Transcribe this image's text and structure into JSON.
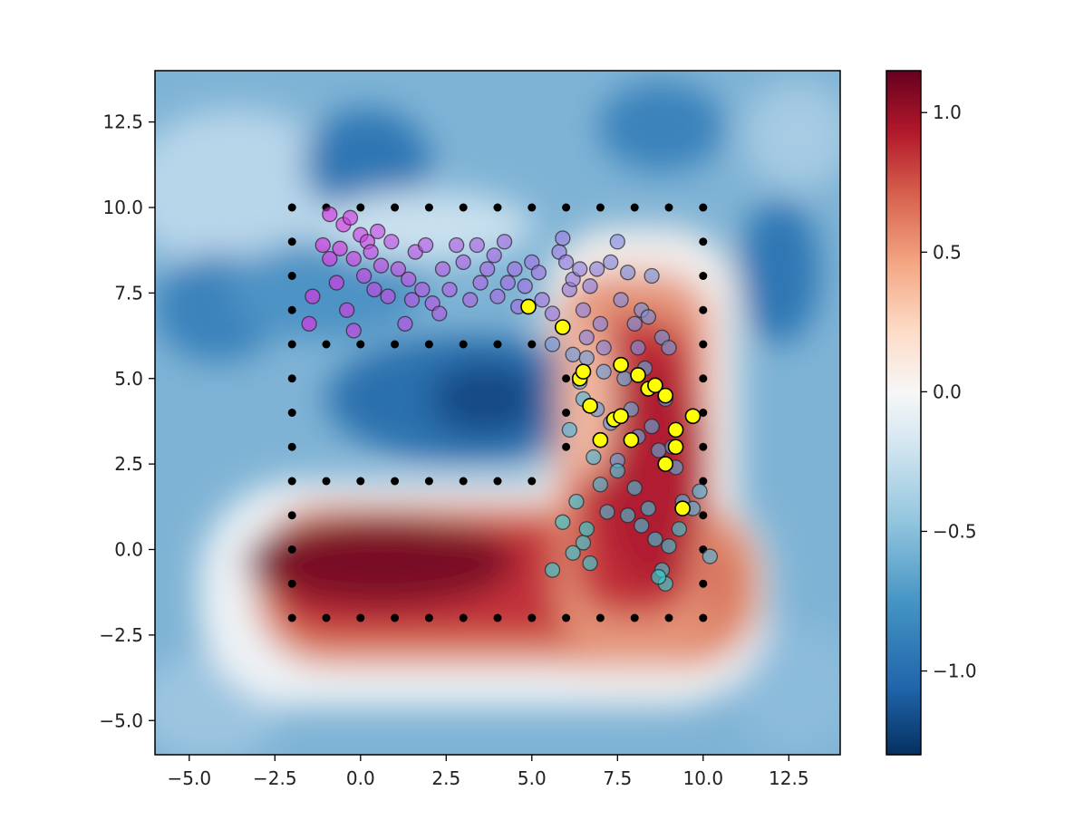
{
  "chart_data": {
    "type": "scatter",
    "title": "",
    "xlabel": "",
    "ylabel": "",
    "xlim": [
      -6,
      14
    ],
    "ylim": [
      -6,
      14
    ],
    "grid": false,
    "x_ticks": [
      -5.0,
      -2.5,
      0.0,
      2.5,
      5.0,
      7.5,
      10.0,
      12.5
    ],
    "x_tick_labels": [
      "−5.0",
      "−2.5",
      "0.0",
      "2.5",
      "5.0",
      "7.5",
      "10.0",
      "12.5"
    ],
    "y_ticks": [
      -5.0,
      -2.5,
      0.0,
      2.5,
      5.0,
      7.5,
      10.0,
      12.5
    ],
    "y_tick_labels": [
      "−5.0",
      "−2.5",
      "0.0",
      "2.5",
      "5.0",
      "7.5",
      "10.0",
      "12.5"
    ],
    "background_heatmap": {
      "colormap": "RdBu_r",
      "value_range": [
        -1.3,
        1.15
      ],
      "description": "smooth field: high (red) along bottom bar y≈-2..2 and right column x≈6..10, low (blue) inside upper loop and outside region"
    },
    "colorbar": {
      "ticks": [
        1.0,
        0.5,
        0.0,
        -0.5,
        -1.0
      ],
      "tick_labels": [
        "1.0",
        "0.5",
        "0.0",
        "−0.5",
        "−1.0"
      ],
      "range": [
        -1.3,
        1.15
      ]
    },
    "grid_points": {
      "color": "#000000",
      "description": "black dots tracing the boundary of a P-shaped region"
    },
    "series": [
      {
        "name": "trajectory_samples",
        "style": "gradient magenta→cyan",
        "points": [
          [
            -1.5,
            6.6
          ],
          [
            -1.4,
            7.4
          ],
          [
            -1.1,
            8.9
          ],
          [
            -0.9,
            8.5
          ],
          [
            -0.9,
            9.8
          ],
          [
            -0.7,
            7.8
          ],
          [
            -0.6,
            8.8
          ],
          [
            -0.5,
            9.5
          ],
          [
            -0.4,
            7.0
          ],
          [
            -0.3,
            9.7
          ],
          [
            -0.2,
            8.5
          ],
          [
            -0.2,
            6.4
          ],
          [
            0.0,
            9.2
          ],
          [
            0.1,
            8.0
          ],
          [
            0.2,
            9.0
          ],
          [
            0.3,
            8.7
          ],
          [
            0.4,
            7.6
          ],
          [
            0.5,
            9.3
          ],
          [
            0.6,
            8.3
          ],
          [
            0.8,
            7.4
          ],
          [
            0.9,
            9.0
          ],
          [
            1.1,
            8.2
          ],
          [
            1.3,
            6.6
          ],
          [
            1.4,
            7.9
          ],
          [
            1.5,
            7.3
          ],
          [
            1.6,
            8.7
          ],
          [
            1.8,
            7.6
          ],
          [
            1.9,
            8.9
          ],
          [
            2.1,
            7.2
          ],
          [
            2.3,
            6.9
          ],
          [
            2.4,
            8.2
          ],
          [
            2.6,
            7.6
          ],
          [
            2.8,
            8.9
          ],
          [
            3.0,
            8.4
          ],
          [
            3.2,
            7.3
          ],
          [
            3.4,
            8.9
          ],
          [
            3.5,
            7.8
          ],
          [
            3.7,
            8.2
          ],
          [
            3.9,
            8.6
          ],
          [
            4.0,
            7.4
          ],
          [
            4.2,
            9.0
          ],
          [
            4.3,
            7.8
          ],
          [
            4.5,
            8.2
          ],
          [
            4.6,
            7.1
          ],
          [
            4.8,
            7.7
          ],
          [
            5.0,
            8.4
          ],
          [
            5.2,
            8.1
          ],
          [
            5.3,
            7.3
          ],
          [
            5.6,
            6.9
          ],
          [
            5.8,
            8.7
          ],
          [
            5.9,
            9.1
          ],
          [
            6.0,
            8.4
          ],
          [
            6.1,
            7.6
          ],
          [
            6.2,
            7.9
          ],
          [
            6.4,
            8.2
          ],
          [
            6.5,
            7.0
          ],
          [
            6.6,
            6.2
          ],
          [
            6.7,
            7.7
          ],
          [
            6.9,
            8.2
          ],
          [
            7.0,
            6.6
          ],
          [
            7.1,
            5.9
          ],
          [
            7.3,
            8.4
          ],
          [
            7.5,
            9.0
          ],
          [
            7.6,
            7.3
          ],
          [
            7.8,
            8.1
          ],
          [
            8.0,
            6.6
          ],
          [
            8.1,
            5.9
          ],
          [
            8.2,
            7.0
          ],
          [
            8.4,
            6.8
          ],
          [
            8.5,
            8.0
          ],
          [
            8.8,
            6.2
          ],
          [
            9.0,
            5.9
          ],
          [
            5.6,
            6.0
          ],
          [
            6.2,
            5.7
          ],
          [
            6.4,
            4.9
          ],
          [
            6.6,
            5.6
          ],
          [
            6.9,
            4.1
          ],
          [
            7.1,
            5.2
          ],
          [
            7.3,
            3.7
          ],
          [
            7.5,
            2.6
          ],
          [
            7.7,
            5.0
          ],
          [
            7.9,
            4.1
          ],
          [
            8.1,
            3.3
          ],
          [
            8.3,
            5.3
          ],
          [
            8.5,
            3.6
          ],
          [
            8.7,
            2.9
          ],
          [
            8.9,
            4.4
          ],
          [
            9.1,
            3.0
          ],
          [
            9.2,
            2.4
          ],
          [
            9.4,
            1.4
          ],
          [
            9.7,
            1.2
          ],
          [
            9.9,
            1.7
          ],
          [
            10.2,
            -0.2
          ],
          [
            6.1,
            3.5
          ],
          [
            6.5,
            4.4
          ],
          [
            6.8,
            2.7
          ],
          [
            7.0,
            1.9
          ],
          [
            7.2,
            1.1
          ],
          [
            7.5,
            2.3
          ],
          [
            7.8,
            1.0
          ],
          [
            8.0,
            1.8
          ],
          [
            8.2,
            0.7
          ],
          [
            8.4,
            1.2
          ],
          [
            8.6,
            0.3
          ],
          [
            8.8,
            -0.6
          ],
          [
            9.0,
            0.1
          ],
          [
            9.3,
            0.6
          ],
          [
            6.3,
            1.4
          ],
          [
            6.5,
            0.2
          ],
          [
            6.7,
            -0.4
          ],
          [
            6.2,
            -0.1
          ],
          [
            5.9,
            0.8
          ],
          [
            5.6,
            -0.6
          ],
          [
            6.6,
            0.6
          ],
          [
            8.9,
            -1.0
          ],
          [
            8.7,
            -0.8
          ]
        ]
      },
      {
        "name": "highlighted_points",
        "color": "#ffff00",
        "points": [
          [
            4.9,
            7.1
          ],
          [
            5.9,
            6.5
          ],
          [
            6.4,
            5.0
          ],
          [
            6.5,
            5.2
          ],
          [
            6.7,
            4.2
          ],
          [
            7.0,
            3.2
          ],
          [
            7.4,
            3.8
          ],
          [
            7.6,
            3.9
          ],
          [
            7.6,
            5.4
          ],
          [
            7.9,
            3.2
          ],
          [
            8.1,
            5.1
          ],
          [
            8.4,
            4.7
          ],
          [
            8.6,
            4.8
          ],
          [
            8.9,
            4.5
          ],
          [
            8.9,
            2.5
          ],
          [
            9.2,
            3.0
          ],
          [
            9.2,
            3.5
          ],
          [
            9.4,
            1.2
          ],
          [
            9.7,
            3.9
          ]
        ]
      }
    ]
  }
}
